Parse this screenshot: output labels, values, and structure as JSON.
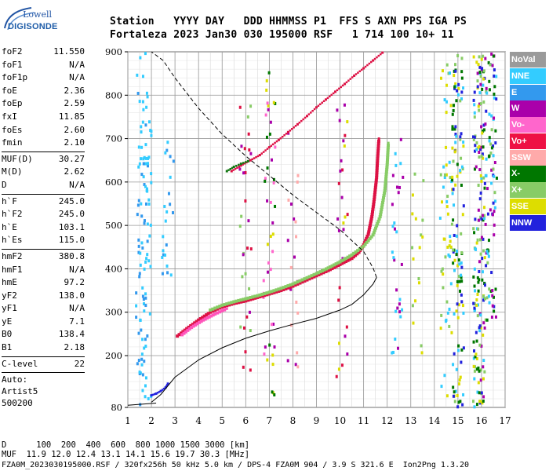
{
  "logo": {
    "line1": "Lowell",
    "line2": "DIGISONDE"
  },
  "header": {
    "line1": "Station   YYYY DAY   DDD HHMMSS P1  FFS S AXN PPS IGA PS",
    "line2": "Fortaleza 2023 Jan30 030 195000 RSF   1 714 100 10+ 11"
  },
  "params": {
    "groups": [
      [
        {
          "name": "foF2",
          "value": "11.550"
        },
        {
          "name": "foF1",
          "value": "N/A"
        },
        {
          "name": "foF1p",
          "value": "N/A"
        },
        {
          "name": "foE",
          "value": "2.36"
        },
        {
          "name": "foEp",
          "value": "2.59"
        },
        {
          "name": "fxI",
          "value": "11.85"
        },
        {
          "name": "foEs",
          "value": "2.60"
        },
        {
          "name": "fmin",
          "value": "2.10"
        }
      ],
      [
        {
          "name": "MUF(D)",
          "value": "30.27"
        },
        {
          "name": "M(D)",
          "value": "2.62"
        },
        {
          "name": "D",
          "value": "N/A"
        }
      ],
      [
        {
          "name": "h`F",
          "value": "245.0"
        },
        {
          "name": "h`F2",
          "value": "245.0"
        },
        {
          "name": "h`E",
          "value": "103.1"
        },
        {
          "name": "h`Es",
          "value": "115.0"
        }
      ],
      [
        {
          "name": "hmF2",
          "value": "380.8"
        },
        {
          "name": "hmF1",
          "value": "N/A"
        },
        {
          "name": "hmE",
          "value": "97.2"
        },
        {
          "name": "yF2",
          "value": "138.0"
        },
        {
          "name": "yF1",
          "value": "N/A"
        },
        {
          "name": "yE",
          "value": "7.1"
        },
        {
          "name": "B0",
          "value": "138.4"
        },
        {
          "name": "B1",
          "value": "2.18"
        }
      ],
      [
        {
          "name": "C-level",
          "value": "22"
        }
      ]
    ],
    "auto_lines": [
      "Auto:",
      "Artist5",
      "500200"
    ]
  },
  "legend": [
    {
      "label": "NoVal",
      "color": "#9a9a9a"
    },
    {
      "label": "NNE",
      "color": "#33ccff"
    },
    {
      "label": "E",
      "color": "#3399ee"
    },
    {
      "label": "W",
      "color": "#aa00aa"
    },
    {
      "label": "Vo-",
      "color": "#ff66cc"
    },
    {
      "label": "Vo+",
      "color": "#ee1144"
    },
    {
      "label": "SSW",
      "color": "#ffaaaa"
    },
    {
      "label": "X-",
      "color": "#007700"
    },
    {
      "label": "X+",
      "color": "#88cc66"
    },
    {
      "label": "SSE",
      "color": "#dddd00"
    },
    {
      "label": "NNW",
      "color": "#2222dd"
    }
  ],
  "chart_data": {
    "type": "scatter",
    "xlabel": "",
    "ylabel": "",
    "xlim": [
      1,
      17
    ],
    "ylim": [
      80,
      900
    ],
    "x_ticks": [
      1,
      2,
      3,
      4,
      5,
      6,
      7,
      8,
      9,
      10,
      11,
      12,
      13,
      14,
      15,
      16,
      17
    ],
    "y_ticks": [
      80,
      200,
      300,
      400,
      500,
      600,
      700,
      800,
      900
    ],
    "series": [
      {
        "name": "Vo+",
        "points": [
          [
            3.1,
            245
          ],
          [
            3.5,
            262
          ],
          [
            4.0,
            282
          ],
          [
            4.5,
            300
          ],
          [
            5.0,
            312
          ],
          [
            5.5,
            320
          ],
          [
            6.0,
            326
          ],
          [
            6.5,
            334
          ],
          [
            7.0,
            342
          ],
          [
            7.5,
            350
          ],
          [
            8.0,
            360
          ],
          [
            8.5,
            372
          ],
          [
            9.0,
            384
          ],
          [
            9.5,
            396
          ],
          [
            10.0,
            410
          ],
          [
            10.5,
            424
          ],
          [
            10.8,
            438
          ],
          [
            11.0,
            455
          ],
          [
            11.2,
            480
          ],
          [
            11.35,
            520
          ],
          [
            11.45,
            560
          ],
          [
            11.55,
            610
          ],
          [
            11.6,
            660
          ],
          [
            11.65,
            700
          ]
        ]
      },
      {
        "name": "X+",
        "points": [
          [
            4.5,
            305
          ],
          [
            5.0,
            316
          ],
          [
            5.5,
            324
          ],
          [
            6.0,
            331
          ],
          [
            6.5,
            338
          ],
          [
            7.0,
            346
          ],
          [
            7.5,
            355
          ],
          [
            8.0,
            365
          ],
          [
            8.5,
            377
          ],
          [
            9.0,
            389
          ],
          [
            9.5,
            402
          ],
          [
            10.0,
            416
          ],
          [
            10.5,
            432
          ],
          [
            11.0,
            452
          ],
          [
            11.4,
            478
          ],
          [
            11.7,
            520
          ],
          [
            11.9,
            580
          ],
          [
            12.0,
            640
          ],
          [
            12.05,
            690
          ]
        ]
      },
      {
        "name": "Vo-",
        "points": [
          [
            3.3,
            248
          ],
          [
            3.7,
            265
          ],
          [
            4.2,
            282
          ],
          [
            4.7,
            296
          ],
          [
            5.2,
            308
          ]
        ]
      },
      {
        "name": "Vo+ second hop",
        "points": [
          [
            5.4,
            625
          ],
          [
            5.8,
            638
          ],
          [
            6.2,
            650
          ],
          [
            6.6,
            662
          ],
          [
            7.0,
            680
          ],
          [
            7.4,
            697
          ],
          [
            7.8,
            715
          ],
          [
            8.2,
            733
          ],
          [
            8.6,
            752
          ],
          [
            9.0,
            772
          ],
          [
            9.4,
            790
          ],
          [
            9.8,
            808
          ],
          [
            10.2,
            826
          ],
          [
            10.6,
            845
          ],
          [
            11.0,
            862
          ],
          [
            11.4,
            880
          ],
          [
            11.8,
            898
          ]
        ]
      },
      {
        "name": "X- second hop",
        "points": [
          [
            5.2,
            625
          ],
          [
            5.5,
            635
          ],
          [
            5.8,
            642
          ],
          [
            6.1,
            648
          ]
        ]
      },
      {
        "name": "E layer",
        "points": [
          [
            2.0,
            108
          ],
          [
            2.2,
            112
          ],
          [
            2.4,
            118
          ],
          [
            2.6,
            126
          ],
          [
            2.7,
            135
          ]
        ]
      }
    ],
    "profile_real_height": [
      [
        2.0,
        92
      ],
      [
        2.4,
        110
      ],
      [
        3.0,
        150
      ],
      [
        4.0,
        190
      ],
      [
        5.0,
        218
      ],
      [
        6.0,
        240
      ],
      [
        7.0,
        257
      ],
      [
        8.0,
        272
      ],
      [
        9.0,
        286
      ],
      [
        10.0,
        305
      ],
      [
        10.5,
        318
      ],
      [
        11.0,
        340
      ],
      [
        11.4,
        365
      ],
      [
        11.55,
        380
      ]
    ],
    "profile_topside": [
      [
        11.55,
        380
      ],
      [
        11.4,
        402
      ],
      [
        11.0,
        440
      ],
      [
        10.0,
        490
      ],
      [
        9.0,
        530
      ],
      [
        8.0,
        570
      ],
      [
        7.0,
        615
      ],
      [
        6.0,
        660
      ],
      [
        5.0,
        710
      ],
      [
        4.0,
        770
      ],
      [
        3.0,
        840
      ],
      [
        2.5,
        880
      ],
      [
        2.0,
        900
      ]
    ]
  },
  "footer": {
    "line1": "D      100  200  400  600  800 1000 1500 3000 [km]",
    "line2": "MUF  11.9 12.0 12.4 13.1 14.1 15.6 19.7 30.3 [MHz]",
    "line3": "FZA0M_2023030195000.RSF / 320fx256h 50 kHz 5.0 km / DPS-4 FZA0M 904 / 3.9 S 321.6 E  Ion2Png 1.3.20"
  }
}
